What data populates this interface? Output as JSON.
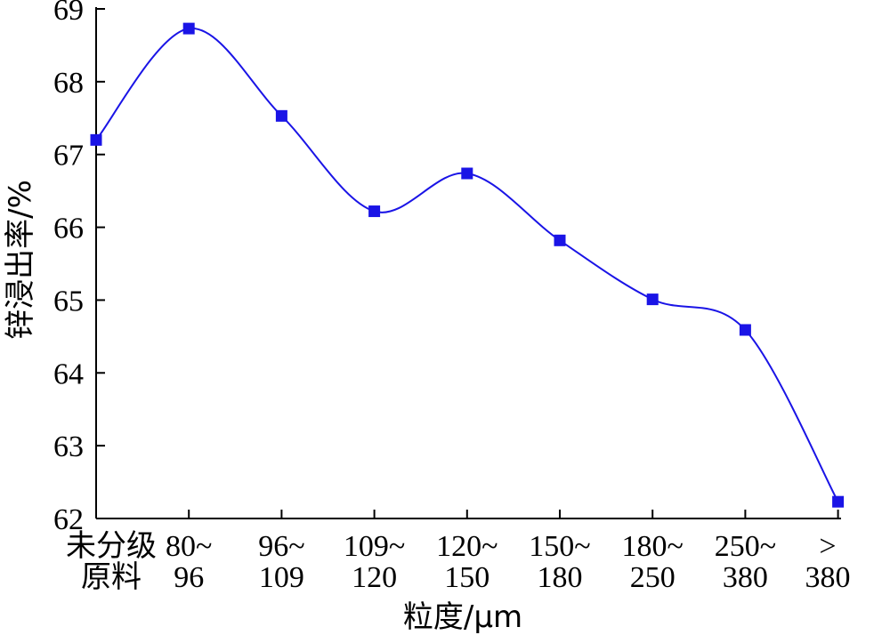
{
  "chart_data": {
    "type": "line",
    "title": "",
    "xlabel": "粒度/μm",
    "ylabel": "锌浸出率/%",
    "ylim": [
      62,
      69
    ],
    "yticks": [
      "62",
      "63",
      "64",
      "65",
      "66",
      "67",
      "68",
      "69"
    ],
    "categories": [
      [
        "未分级",
        "原料"
      ],
      [
        "80~",
        "96"
      ],
      [
        "96~",
        "109"
      ],
      [
        "109~",
        "120"
      ],
      [
        "120~",
        "150"
      ],
      [
        "150~",
        "180"
      ],
      [
        "180~",
        "250"
      ],
      [
        "250~",
        "380"
      ],
      [
        ">",
        "380"
      ]
    ],
    "series": [
      {
        "values": [
          67.2,
          68.73,
          67.53,
          66.22,
          66.74,
          65.82,
          65.01,
          64.59,
          62.23
        ],
        "color": "#1a14e6",
        "marker": "square"
      }
    ],
    "grid": false,
    "legend": "none"
  }
}
